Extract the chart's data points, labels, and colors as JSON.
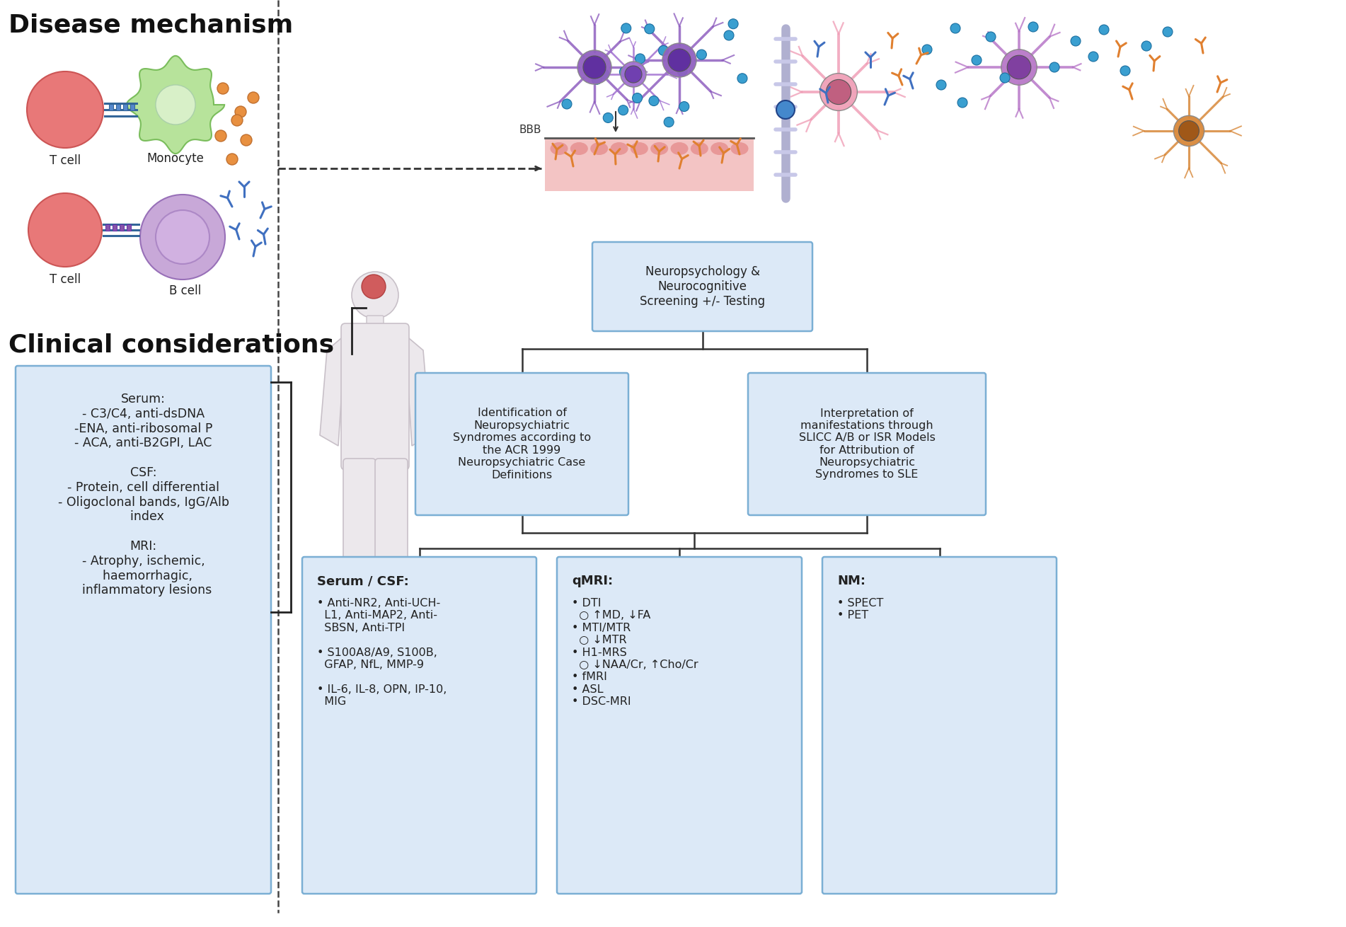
{
  "title_disease": "Disease mechanism",
  "title_clinical": "Clinical considerations",
  "bg_color": "#ffffff",
  "box_fill": "#dce9f7",
  "box_edge": "#7bafd4",
  "clinical_box_text": "Serum:\n- C3/C4, anti-dsDNA\n-ENA, anti-ribosomal P\n- ACA, anti-B2GPI, LAC\n\nCSF:\n- Protein, cell differential\n- Oligoclonal bands, IgG/Alb\n  index\n\nMRI:\n- Atrophy, ischemic,\n  haemorrhagic,\n  inflammatory lesions",
  "top_box_text": "Neuropsychology &\nNeurocognitive\nScreening +/- Testing",
  "mid_left_box_text": "Identification of\nNeuropsychiatric\nSyndromes according to\nthe ACR 1999\nNeuropsychiatric Case\nDefinitions",
  "mid_right_box_text": "Interpretation of\nmanifestations through\nSLICC A/B or ISR Models\nfor Attribution of\nNeuropsychiatric\nSyndromes to SLE",
  "bot_left_box_title": "Serum / CSF:",
  "bot_left_box_text": "• Anti-NR2, Anti-UCH-\n  L1, Anti-MAP2, Anti-\n  SBSN, Anti-TPI\n\n• S100A8/A9, S100B,\n  GFAP, NfL, MMP-9\n\n• IL-6, IL-8, OPN, IP-10,\n  MIG",
  "bot_mid_box_title": "qMRI:",
  "bot_mid_box_text": "• DTI\n  ○ ↑MD, ↓FA\n• MTI/MTR\n  ○ ↓MTR\n• H1-MRS\n  ○ ↓NAA/Cr, ↑Cho/Cr\n• fMRI\n• ASL\n• DSC-MRI",
  "bot_right_box_title": "NM:",
  "bot_right_box_text": "• SPECT\n• PET"
}
